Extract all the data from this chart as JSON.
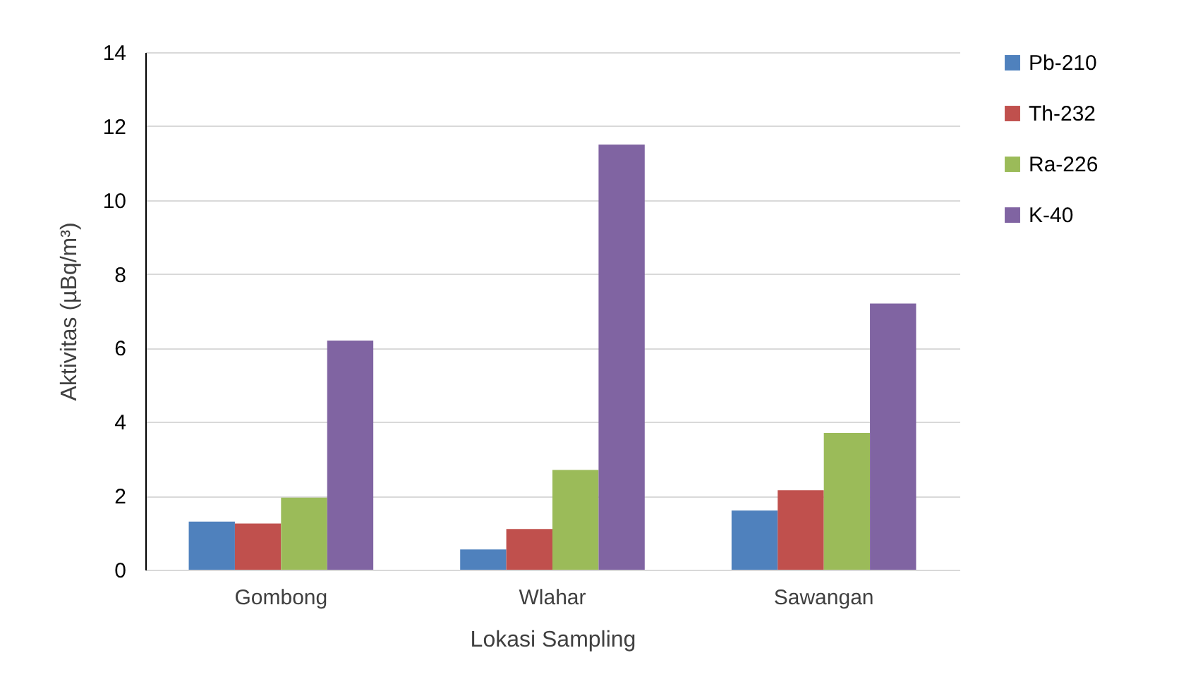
{
  "chart_data": {
    "type": "bar",
    "xlabel": "Lokasi Sampling",
    "ylabel": "Aktivitas (µBq/m³)",
    "categories": [
      "Gombong",
      "Wlahar",
      "Sawangan"
    ],
    "series": [
      {
        "name": "Pb-210",
        "color": "#4f81bd",
        "values": [
          1.3,
          0.55,
          1.6
        ]
      },
      {
        "name": "Th-232",
        "color": "#c0504d",
        "values": [
          1.25,
          1.1,
          2.15
        ]
      },
      {
        "name": "Ra-226",
        "color": "#9bbb59",
        "values": [
          1.95,
          2.7,
          3.7
        ]
      },
      {
        "name": "K-40",
        "color": "#8064a2",
        "values": [
          6.2,
          11.5,
          7.2
        ]
      }
    ],
    "ylim": [
      0,
      14
    ],
    "yticks": [
      0,
      2,
      4,
      6,
      8,
      10,
      12,
      14
    ],
    "grid": "y",
    "legend": "right"
  }
}
